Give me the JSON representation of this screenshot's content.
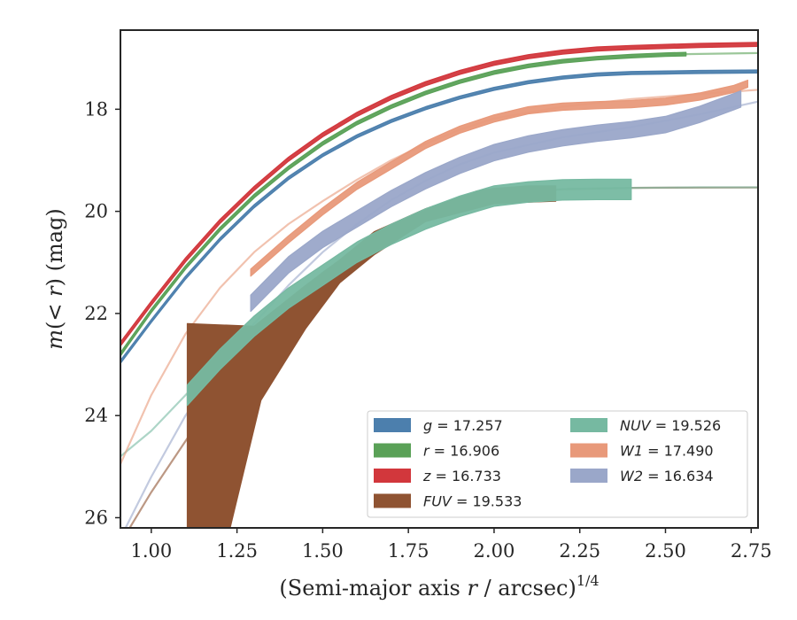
{
  "chart_data": {
    "type": "line",
    "title": "",
    "xlabel": "(Semi-major axis r / arcsec)1/4",
    "xlabel_parts": {
      "pre": "(Semi-major axis ",
      "var": "r",
      "post": " / arcsec)",
      "sup": "1/4"
    },
    "ylabel": "m(< r) (mag)",
    "ylabel_parts": {
      "var1": "m",
      "mid": "(< ",
      "var2": "r",
      "post": ") (mag)"
    },
    "xlim": [
      0.91,
      2.77
    ],
    "ylim": [
      26.2,
      16.45
    ],
    "y_inverted": true,
    "xticks": [
      "1.00",
      "1.25",
      "1.50",
      "1.75",
      "2.00",
      "2.25",
      "2.50",
      "2.75"
    ],
    "xtick_values": [
      1.0,
      1.25,
      1.5,
      1.75,
      2.0,
      2.25,
      2.5,
      2.75
    ],
    "yticks": [
      "18",
      "20",
      "22",
      "24",
      "26"
    ],
    "ytick_values": [
      18,
      20,
      22,
      24,
      26
    ],
    "grid": false,
    "legend_position": "lower-right",
    "series": [
      {
        "name": "g = 17.257",
        "var": "g",
        "value": "17.257",
        "color": "#4c7fad",
        "kind": "band",
        "x": [
          0.91,
          1.0,
          1.1,
          1.2,
          1.3,
          1.4,
          1.5,
          1.6,
          1.7,
          1.8,
          1.9,
          2.0,
          2.1,
          2.2,
          2.3,
          2.4,
          2.5,
          2.6,
          2.77
        ],
        "y": [
          22.95,
          22.15,
          21.3,
          20.55,
          19.9,
          19.35,
          18.9,
          18.53,
          18.23,
          17.98,
          17.77,
          17.6,
          17.47,
          17.38,
          17.32,
          17.29,
          17.28,
          17.27,
          17.26
        ],
        "width": 0.06
      },
      {
        "name": "r = 16.906",
        "var": "r",
        "value": "16.906",
        "color": "#5aa157",
        "kind": "band",
        "x": [
          0.91,
          1.0,
          1.1,
          1.2,
          1.3,
          1.4,
          1.5,
          1.6,
          1.7,
          1.8,
          1.9,
          2.0,
          2.1,
          2.2,
          2.3,
          2.4,
          2.5,
          2.56
        ],
        "y": [
          22.8,
          21.95,
          21.1,
          20.35,
          19.7,
          19.15,
          18.67,
          18.27,
          17.95,
          17.68,
          17.46,
          17.28,
          17.15,
          17.06,
          17.0,
          16.96,
          16.93,
          16.92
        ],
        "width": 0.07,
        "ext": {
          "x": [
            2.56,
            2.77
          ],
          "y": [
            16.92,
            16.9
          ]
        }
      },
      {
        "name": "z = 16.733",
        "var": "z",
        "value": "16.733",
        "color": "#d2373c",
        "kind": "band",
        "x": [
          0.91,
          1.0,
          1.1,
          1.2,
          1.3,
          1.4,
          1.5,
          1.6,
          1.7,
          1.8,
          1.9,
          2.0,
          2.1,
          2.2,
          2.3,
          2.4,
          2.5,
          2.6,
          2.77
        ],
        "y": [
          22.6,
          21.8,
          20.95,
          20.2,
          19.55,
          18.98,
          18.5,
          18.1,
          17.77,
          17.5,
          17.28,
          17.1,
          16.97,
          16.88,
          16.82,
          16.79,
          16.77,
          16.75,
          16.73
        ],
        "width": 0.08
      },
      {
        "name": "FUV = 19.533",
        "var": "FUV",
        "value": "19.533",
        "color": "#8f5332",
        "kind": "polygon",
        "x": [
          1.105,
          1.3,
          1.45,
          1.55,
          1.65,
          1.8,
          1.95,
          2.0,
          2.1,
          2.18,
          2.18,
          2.1,
          2.0,
          1.8,
          1.65,
          1.55,
          1.45,
          1.32,
          1.23,
          1.2,
          1.105
        ],
        "y": [
          22.2,
          22.25,
          21.45,
          20.95,
          20.4,
          19.95,
          19.6,
          19.55,
          19.5,
          19.5,
          19.8,
          19.82,
          19.85,
          20.2,
          20.85,
          21.4,
          22.3,
          23.7,
          26.2,
          26.2,
          26.2
        ],
        "ext": {
          "x": [
            0.91,
            1.0,
            1.1,
            1.2,
            1.3,
            1.4,
            1.5,
            1.6,
            1.7,
            1.8,
            1.9,
            2.0,
            2.2,
            2.4,
            2.6,
            2.77
          ],
          "y": [
            26.5,
            25.5,
            24.5,
            23.5,
            22.6,
            21.8,
            21.2,
            20.75,
            20.35,
            20.05,
            19.8,
            19.65,
            19.57,
            19.54,
            19.535,
            19.533
          ]
        }
      },
      {
        "name": "NUV = 19.526",
        "var": "NUV",
        "value": "19.526",
        "color": "#76b9a1",
        "kind": "band",
        "x": [
          1.105,
          1.2,
          1.3,
          1.4,
          1.5,
          1.6,
          1.7,
          1.8,
          1.9,
          2.0,
          2.1,
          2.2,
          2.3,
          2.4
        ],
        "y": [
          23.6,
          22.9,
          22.25,
          21.7,
          21.25,
          20.8,
          20.45,
          20.15,
          19.9,
          19.7,
          19.62,
          19.58,
          19.57,
          19.57
        ],
        "width": 0.4,
        "ext": {
          "x": [
            0.91,
            1.0,
            1.1,
            1.2,
            1.3,
            1.4,
            1.5,
            1.6,
            1.7,
            1.8,
            1.9,
            2.0,
            2.2,
            2.4,
            2.6,
            2.77
          ],
          "y": [
            24.8,
            24.3,
            23.6,
            22.95,
            22.35,
            21.75,
            21.2,
            20.75,
            20.4,
            20.1,
            19.85,
            19.68,
            19.56,
            19.54,
            19.53,
            19.53
          ]
        }
      },
      {
        "name": "W1 = 17.490",
        "var": "W1",
        "value": "17.490",
        "color": "#e8997a",
        "kind": "band",
        "x": [
          1.29,
          1.4,
          1.5,
          1.6,
          1.7,
          1.8,
          1.9,
          2.0,
          2.1,
          2.2,
          2.3,
          2.4,
          2.5,
          2.6,
          2.7,
          2.74
        ],
        "y": [
          21.2,
          20.55,
          20.0,
          19.5,
          19.1,
          18.7,
          18.4,
          18.18,
          18.02,
          17.95,
          17.92,
          17.9,
          17.85,
          17.75,
          17.6,
          17.5
        ],
        "width": 0.14,
        "ext": {
          "x": [
            0.91,
            1.0,
            1.1,
            1.2,
            1.3,
            1.4,
            1.5,
            1.6,
            1.7,
            1.8,
            1.9,
            2.0,
            2.2,
            2.4,
            2.6,
            2.77
          ],
          "y": [
            24.95,
            23.6,
            22.4,
            21.5,
            20.8,
            20.25,
            19.8,
            19.38,
            19.0,
            18.68,
            18.4,
            18.18,
            17.95,
            17.8,
            17.7,
            17.62
          ]
        }
      },
      {
        "name": "W2 = 16.634",
        "var": "W2",
        "value": "16.634",
        "color": "#9aa7c9",
        "kind": "band",
        "x": [
          1.29,
          1.4,
          1.5,
          1.6,
          1.7,
          1.8,
          1.9,
          2.0,
          2.1,
          2.2,
          2.3,
          2.4,
          2.5,
          2.6,
          2.7,
          2.72
        ],
        "y": [
          21.8,
          21.05,
          20.55,
          20.15,
          19.75,
          19.4,
          19.1,
          18.85,
          18.68,
          18.56,
          18.47,
          18.4,
          18.3,
          18.1,
          17.85,
          17.8
        ],
        "width": 0.32,
        "ext": {
          "x": [
            0.91,
            1.0,
            1.1,
            1.2,
            1.3,
            1.4,
            1.5,
            1.6,
            1.7,
            1.8,
            1.9,
            2.0,
            2.2,
            2.4,
            2.6,
            2.77
          ],
          "y": [
            26.4,
            25.2,
            24.0,
            23.0,
            22.2,
            21.45,
            20.8,
            20.25,
            19.78,
            19.4,
            19.08,
            18.85,
            18.55,
            18.35,
            18.1,
            17.85
          ]
        }
      }
    ]
  }
}
